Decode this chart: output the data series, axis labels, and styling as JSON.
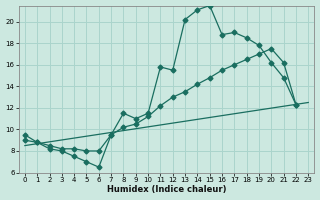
{
  "xlabel": "Humidex (Indice chaleur)",
  "bg_color": "#cce8e0",
  "grid_color": "#aad4cc",
  "line_color": "#1a6e60",
  "xlim": [
    -0.5,
    23.5
  ],
  "ylim": [
    6,
    21.5
  ],
  "xticks": [
    0,
    1,
    2,
    3,
    4,
    5,
    6,
    7,
    8,
    9,
    10,
    11,
    12,
    13,
    14,
    15,
    16,
    17,
    18,
    19,
    20,
    21,
    22,
    23
  ],
  "yticks": [
    6,
    8,
    10,
    12,
    14,
    16,
    18,
    20
  ],
  "line1_x": [
    0,
    1,
    2,
    3,
    4,
    5,
    6,
    7,
    8,
    9,
    10,
    11,
    12,
    13,
    14,
    15,
    16,
    17,
    18,
    19,
    20,
    21,
    22
  ],
  "line1_y": [
    9.5,
    8.8,
    8.2,
    8.0,
    7.5,
    7.0,
    6.5,
    9.5,
    11.5,
    11.0,
    11.5,
    15.8,
    15.5,
    20.2,
    21.1,
    21.5,
    18.8,
    19.0,
    18.5,
    17.8,
    16.2,
    14.8,
    12.3
  ],
  "line2_x": [
    0,
    1,
    2,
    3,
    4,
    5,
    6,
    7,
    8,
    9,
    10,
    11,
    12,
    13,
    14,
    15,
    16,
    17,
    18,
    19,
    20,
    21,
    22
  ],
  "line2_y": [
    9.0,
    8.8,
    8.5,
    8.2,
    8.2,
    8.0,
    8.0,
    9.5,
    10.2,
    10.5,
    11.2,
    12.2,
    13.0,
    13.5,
    14.2,
    14.8,
    15.5,
    16.0,
    16.5,
    17.0,
    17.5,
    16.2,
    12.3
  ],
  "line3_x": [
    0,
    23
  ],
  "line3_y": [
    8.5,
    12.5
  ]
}
